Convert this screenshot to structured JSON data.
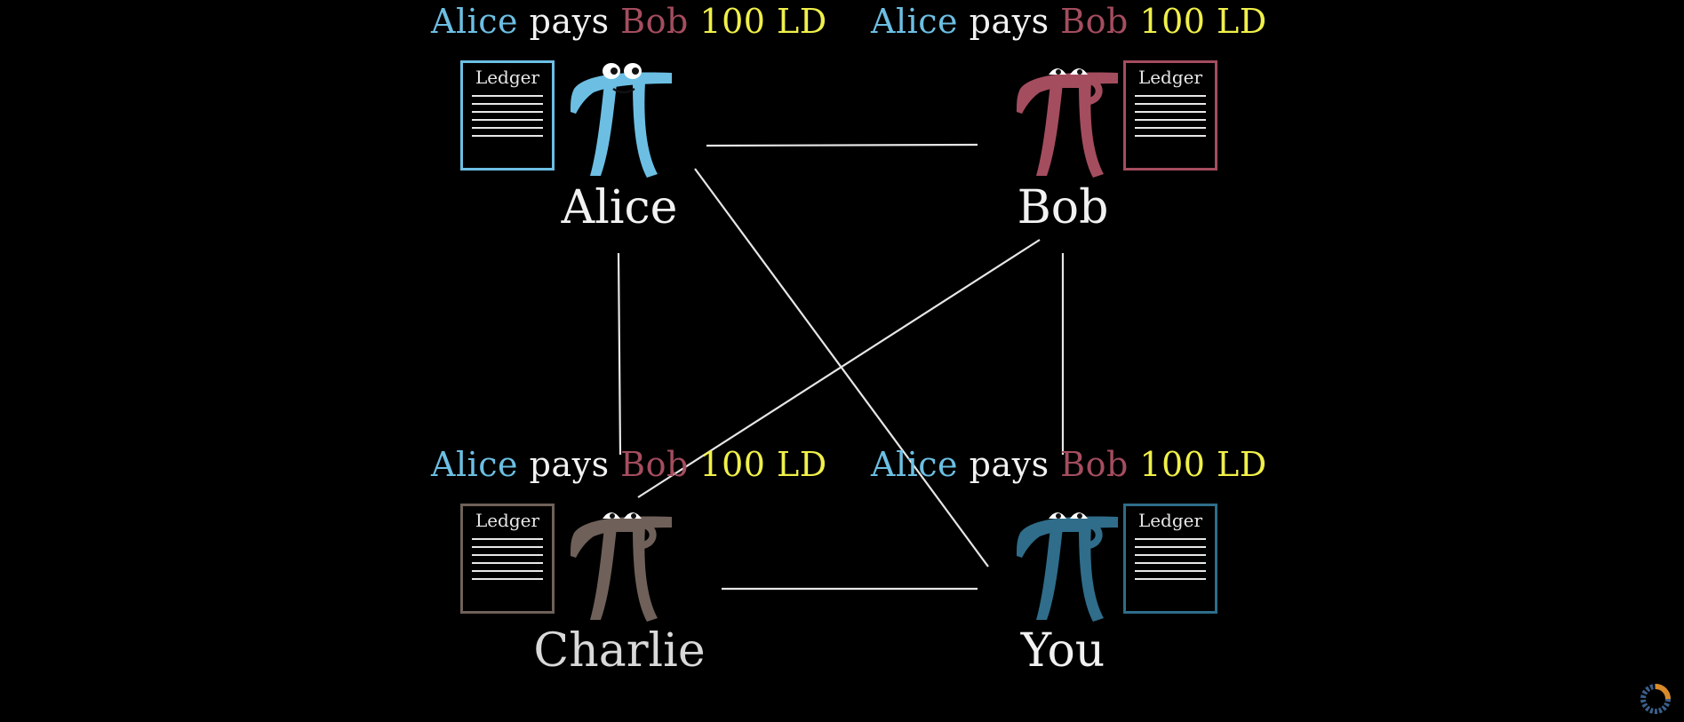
{
  "nodes": [
    {
      "id": "alice",
      "name": "Alice",
      "color": "#6cbfe3",
      "name_color": "#f2f2f2",
      "ledger_label": "Ledger",
      "message": {
        "from": "Alice",
        "verb": "pays",
        "to": "Bob",
        "amount": "100 LD"
      }
    },
    {
      "id": "bob",
      "name": "Bob",
      "color": "#a44d5e",
      "name_color": "#f2f2f2",
      "ledger_label": "Ledger",
      "message": {
        "from": "Alice",
        "verb": "pays",
        "to": "Bob",
        "amount": "100 LD"
      }
    },
    {
      "id": "charlie",
      "name": "Charlie",
      "color": "#6f6159",
      "name_color": "#d9d9d9",
      "ledger_label": "Ledger",
      "message": {
        "from": "Alice",
        "verb": "pays",
        "to": "Bob",
        "amount": "100 LD"
      }
    },
    {
      "id": "you",
      "name": "You",
      "color": "#2f6d8a",
      "name_color": "#f2f2f2",
      "ledger_label": "Ledger",
      "message": {
        "from": "Alice",
        "verb": "pays",
        "to": "Bob",
        "amount": "100 LD"
      }
    }
  ],
  "edges": [
    [
      "alice",
      "bob"
    ],
    [
      "alice",
      "charlie"
    ],
    [
      "alice",
      "you"
    ],
    [
      "bob",
      "charlie"
    ],
    [
      "bob",
      "you"
    ],
    [
      "charlie",
      "you"
    ]
  ],
  "colors": {
    "background": "#000000",
    "message_from": "#6cbfe3",
    "message_verb": "#f2f2f2",
    "message_to": "#a44d5e",
    "message_amount": "#f0f04a",
    "edge": "#e6e6e6"
  },
  "icons": {
    "ledger": "ledger-document-icon",
    "character": "pi-creature-icon",
    "loading": "loading-spinner-icon"
  }
}
